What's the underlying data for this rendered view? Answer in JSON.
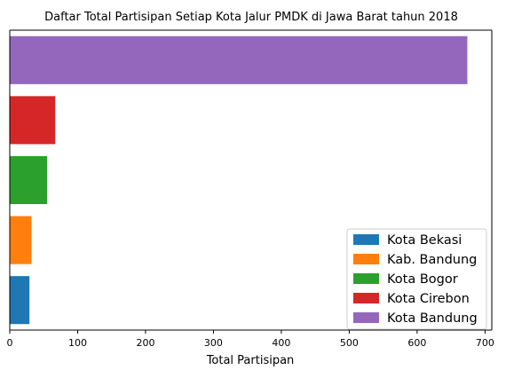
{
  "chart_data": {
    "type": "bar",
    "orientation": "horizontal",
    "title": "Daftar Total Partisipan Setiap Kota Jalur PMDK di Jawa Barat tahun 2018",
    "xlabel": "Total Partisipan",
    "ylabel": "",
    "xlim": [
      0,
      710
    ],
    "xticks": [
      0,
      100,
      200,
      300,
      400,
      500,
      600,
      700
    ],
    "grid": false,
    "legend_position": "lower-right",
    "series": [
      {
        "name": "Kota Bekasi",
        "value": 29,
        "color": "#1f77b4"
      },
      {
        "name": "Kab. Bandung",
        "value": 32,
        "color": "#ff7f0e"
      },
      {
        "name": "Kota Bogor",
        "value": 55,
        "color": "#2ca02c"
      },
      {
        "name": "Kota Cirebon",
        "value": 67,
        "color": "#d62728"
      },
      {
        "name": "Kota Bandung",
        "value": 674,
        "color": "#9467bd"
      }
    ]
  }
}
